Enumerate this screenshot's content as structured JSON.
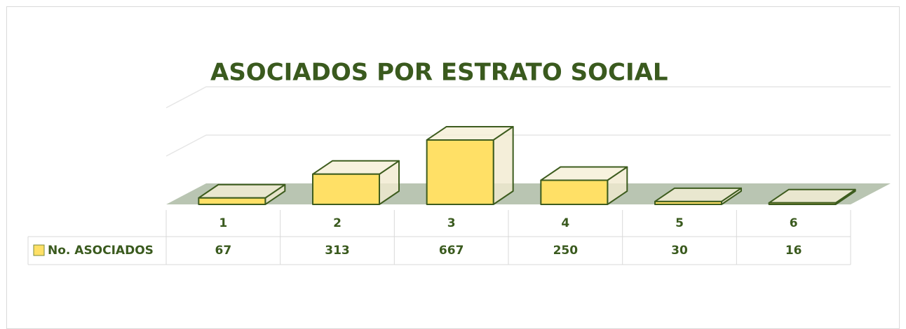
{
  "chart_data": {
    "type": "bar3d",
    "title": "ASOCIADOS POR ESTRATO SOCIAL",
    "categories": [
      "1",
      "2",
      "3",
      "4",
      "5",
      "6"
    ],
    "series": [
      {
        "name": "No. ASOCIADOS",
        "color": "#ffe066",
        "values": [
          67,
          313,
          667,
          250,
          30,
          16
        ]
      }
    ],
    "ylim": [
      0,
      1000
    ],
    "yticks": [
      0,
      500,
      1000
    ],
    "grid": true
  }
}
